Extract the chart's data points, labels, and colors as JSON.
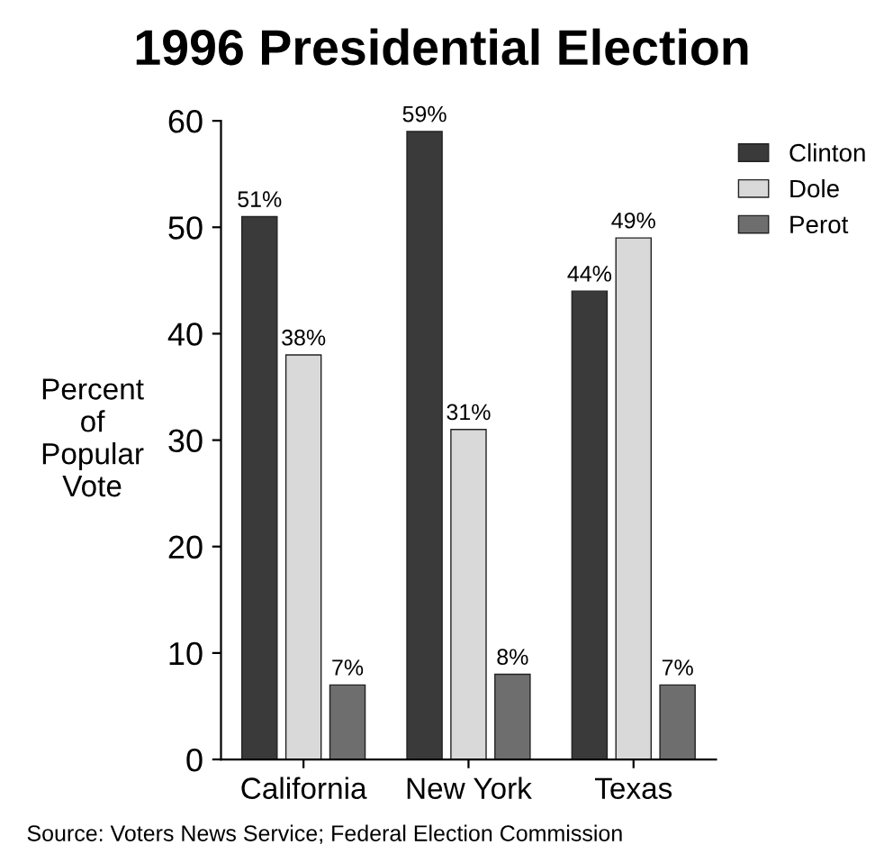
{
  "chart_data": {
    "type": "bar",
    "title": "1996 Presidential Election",
    "ylabel": "Percent\nof\nPopular\nVote",
    "categories": [
      "California",
      "New York",
      "Texas"
    ],
    "series": [
      {
        "name": "Clinton",
        "color": "#3a3a3a",
        "values": [
          51,
          59,
          44
        ],
        "value_labels": [
          "51%",
          "59%",
          "44%"
        ]
      },
      {
        "name": "Dole",
        "color": "#d9d9d9",
        "values": [
          38,
          31,
          49
        ],
        "value_labels": [
          "38%",
          "31%",
          "49%"
        ]
      },
      {
        "name": "Perot",
        "color": "#6e6e6e",
        "values": [
          7,
          8,
          7
        ],
        "value_labels": [
          "7%",
          "8%",
          "7%"
        ]
      }
    ],
    "ylim": [
      0,
      60
    ],
    "yticks": [
      0,
      10,
      20,
      30,
      40,
      50,
      60
    ],
    "grid": false,
    "legend": "top right",
    "annotations": [
      "Source: Voters News Service; Federal Election Commission"
    ]
  }
}
